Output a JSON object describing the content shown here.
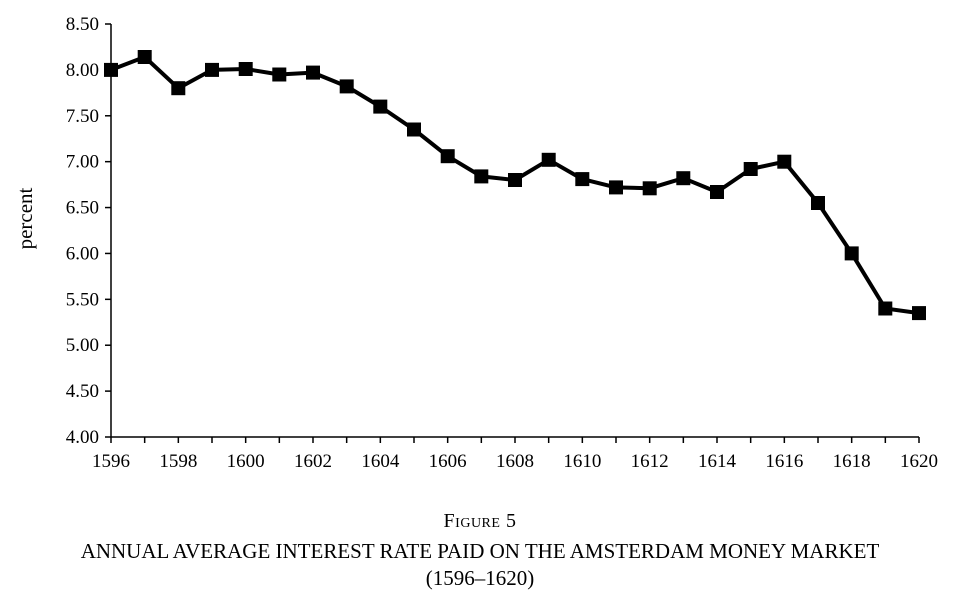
{
  "figure": {
    "label": "Figure 5",
    "title": "ANNUAL AVERAGE INTEREST RATE PAID ON THE AMSTERDAM MONEY MARKET",
    "subtitle": "(1596–1620)"
  },
  "chart_data": {
    "type": "line",
    "title": "",
    "xlabel": "",
    "ylabel": "percent",
    "xlim": [
      1596,
      1620
    ],
    "ylim": [
      4.0,
      8.5
    ],
    "x_ticks": [
      "1596",
      "1598",
      "1600",
      "1602",
      "1604",
      "1606",
      "1608",
      "1610",
      "1612",
      "1614",
      "1616",
      "1618",
      "1620"
    ],
    "y_ticks": [
      "4.00",
      "4.50",
      "5.00",
      "5.50",
      "6.00",
      "6.50",
      "7.00",
      "7.50",
      "8.00",
      "8.50"
    ],
    "grid": false,
    "legend": "none",
    "marker": "square",
    "line_color": "#000000",
    "series": [
      {
        "x": [
          1596,
          1597,
          1598,
          1599,
          1600,
          1601,
          1602,
          1603,
          1604,
          1605,
          1606,
          1607,
          1608,
          1609,
          1610,
          1611,
          1612,
          1613,
          1614,
          1615,
          1616,
          1617,
          1618,
          1619,
          1620
        ],
        "values": [
          8.0,
          8.14,
          7.8,
          8.0,
          8.01,
          7.95,
          7.97,
          7.82,
          7.6,
          7.35,
          7.06,
          6.84,
          6.8,
          7.02,
          6.81,
          6.72,
          6.71,
          6.82,
          6.67,
          6.92,
          7.0,
          6.55,
          6.0,
          5.4,
          5.35
        ]
      }
    ]
  }
}
